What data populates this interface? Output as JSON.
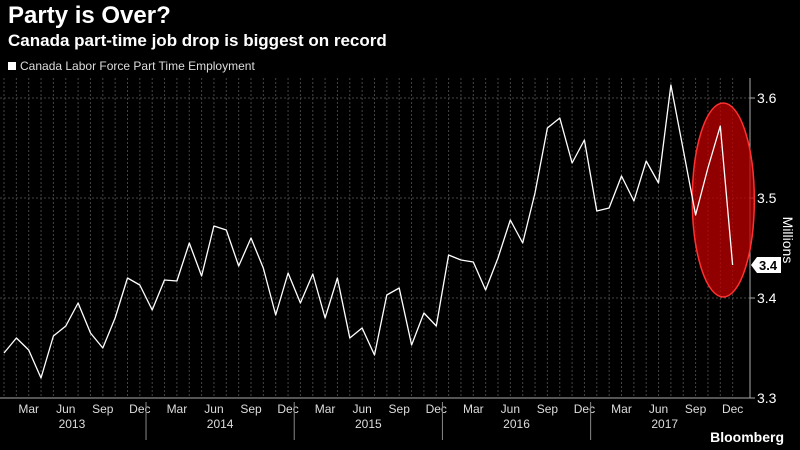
{
  "header": {
    "title": "Party is Over?",
    "subtitle": "Canada part-time job drop is biggest on record"
  },
  "brand": "Bloomberg",
  "colors": {
    "background": "#000000",
    "line": "#ffffff",
    "grid": "#444444",
    "highlight": "#c00000"
  },
  "chart_data": {
    "type": "line",
    "title": "Party is Over?",
    "subtitle": "Canada part-time job drop is biggest on record",
    "ylabel": "Millions",
    "ylim": [
      3.3,
      3.62
    ],
    "yticks": [
      3.3,
      3.4,
      3.5,
      3.6
    ],
    "ytick_labels": [
      "3.3",
      "3.4",
      "3.5",
      "3.6"
    ],
    "last_value_label": "3.4",
    "x_tick_labels": [
      "Mar",
      "Jun",
      "Sep",
      "Dec",
      "Mar",
      "Jun",
      "Sep",
      "Dec",
      "Mar",
      "Jun",
      "Sep",
      "Dec",
      "Mar",
      "Jun",
      "Sep",
      "Dec",
      "Mar",
      "Jun",
      "Sep",
      "Dec"
    ],
    "years": [
      "2013",
      "2014",
      "2015",
      "2016",
      "2017"
    ],
    "grid": true,
    "legend": "top-left",
    "highlight": "ellipse around the last three months",
    "series": [
      {
        "name": "Canada Labor Force Part Time Employment",
        "start": "2013-01",
        "values": [
          3.345,
          3.36,
          3.348,
          3.32,
          3.362,
          3.372,
          3.395,
          3.365,
          3.35,
          3.38,
          3.42,
          3.413,
          3.388,
          3.418,
          3.417,
          3.455,
          3.422,
          3.472,
          3.468,
          3.432,
          3.46,
          3.43,
          3.383,
          3.425,
          3.395,
          3.424,
          3.38,
          3.42,
          3.36,
          3.37,
          3.343,
          3.403,
          3.41,
          3.353,
          3.385,
          3.372,
          3.443,
          3.438,
          3.436,
          3.408,
          3.44,
          3.478,
          3.455,
          3.505,
          3.57,
          3.58,
          3.535,
          3.558,
          3.487,
          3.49,
          3.522,
          3.497,
          3.537,
          3.515,
          3.613,
          3.548,
          3.483,
          3.53,
          3.572,
          3.433
        ]
      }
    ]
  }
}
